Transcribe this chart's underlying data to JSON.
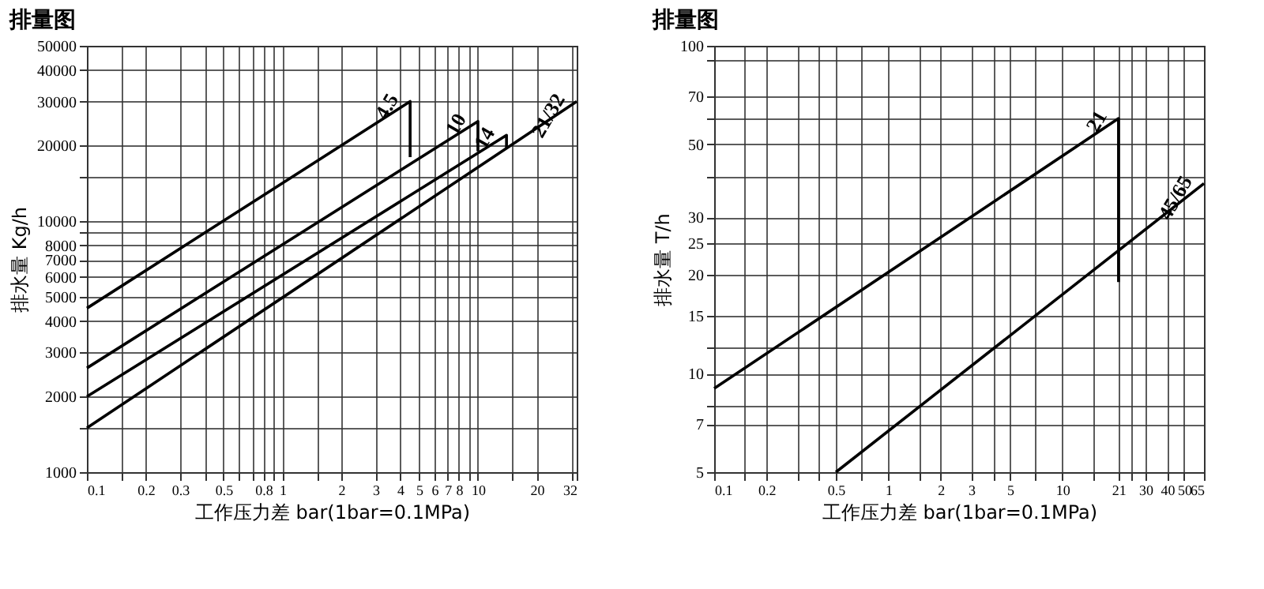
{
  "chart_data": [
    {
      "type": "line",
      "title": "排量图",
      "xlabel": "工作压力差 bar(1bar=0.1MPa)",
      "ylabel": "排水量 Kg/h",
      "log": "xy",
      "grid": true,
      "legend": false,
      "marker": "none",
      "line_style": "solid",
      "xlim": [
        0.1,
        32
      ],
      "ylim": [
        1000,
        50000
      ],
      "xticks": [
        0.1,
        {
          "value": 0.15,
          "label": null
        },
        0.2,
        0.3,
        {
          "value": 0.4,
          "label": null
        },
        0.5,
        {
          "value": 0.6,
          "label": null
        },
        {
          "value": 0.7,
          "label": null
        },
        0.8,
        {
          "value": 0.9,
          "label": null
        },
        1,
        {
          "value": 1.5,
          "label": null
        },
        2,
        3,
        4,
        5,
        6,
        7,
        8,
        {
          "value": 9,
          "label": null
        },
        10,
        {
          "value": 15,
          "label": null
        },
        20,
        {
          "value": 30,
          "label": null
        },
        32
      ],
      "yticks": [
        1000,
        {
          "value": 1500,
          "label": null
        },
        2000,
        3000,
        4000,
        5000,
        6000,
        7000,
        8000,
        {
          "value": 9000,
          "label": null
        },
        10000,
        {
          "value": 15000,
          "label": null
        },
        20000,
        30000,
        40000,
        50000
      ],
      "series": [
        {
          "name": "4.5",
          "color": "#000000",
          "x": [
            0.1,
            4.5,
            4.5
          ],
          "values": [
            4500,
            30000,
            18000
          ]
        },
        {
          "name": "10",
          "color": "#000000",
          "x": [
            0.1,
            10,
            10
          ],
          "values": [
            2600,
            25000,
            19000
          ]
        },
        {
          "name": "14",
          "color": "#000000",
          "x": [
            0.1,
            14,
            14
          ],
          "values": [
            2000,
            22000,
            19500
          ]
        },
        {
          "name": "21/32",
          "color": "#000000",
          "x": [
            0.1,
            32
          ],
          "values": [
            1500,
            30000
          ]
        }
      ]
    },
    {
      "type": "line",
      "title": "排量图",
      "xlabel": "工作压力差 bar(1bar=0.1MPa)",
      "ylabel": "排水量 T/h",
      "log": "xy",
      "grid": true,
      "legend": false,
      "marker": "none",
      "line_style": "solid",
      "xlim": [
        0.1,
        65
      ],
      "ylim": [
        5,
        100
      ],
      "xticks": [
        0.1,
        {
          "value": 0.15,
          "label": null
        },
        0.2,
        {
          "value": 0.3,
          "label": null
        },
        {
          "value": 0.4,
          "label": null
        },
        0.5,
        {
          "value": 0.7,
          "label": null
        },
        1,
        {
          "value": 1.5,
          "label": null
        },
        2,
        3,
        {
          "value": 4,
          "label": null
        },
        5,
        {
          "value": 7,
          "label": null
        },
        10,
        {
          "value": 15,
          "label": null
        },
        21,
        {
          "value": 25,
          "label": null
        },
        30,
        40,
        50,
        65
      ],
      "yticks": [
        5,
        7,
        {
          "value": 8,
          "label": null
        },
        10,
        {
          "value": 12,
          "label": null
        },
        15,
        20,
        25,
        30,
        {
          "value": 40,
          "label": null
        },
        50,
        {
          "value": 60,
          "label": null
        },
        70,
        {
          "value": 90,
          "label": null
        },
        100
      ],
      "series": [
        {
          "name": "21",
          "color": "#000000",
          "x": [
            0.1,
            21,
            21
          ],
          "values": [
            9,
            60,
            19
          ]
        },
        {
          "name": "45/65",
          "color": "#000000",
          "x": [
            0.5,
            65
          ],
          "values": [
            5,
            38
          ]
        }
      ]
    }
  ]
}
